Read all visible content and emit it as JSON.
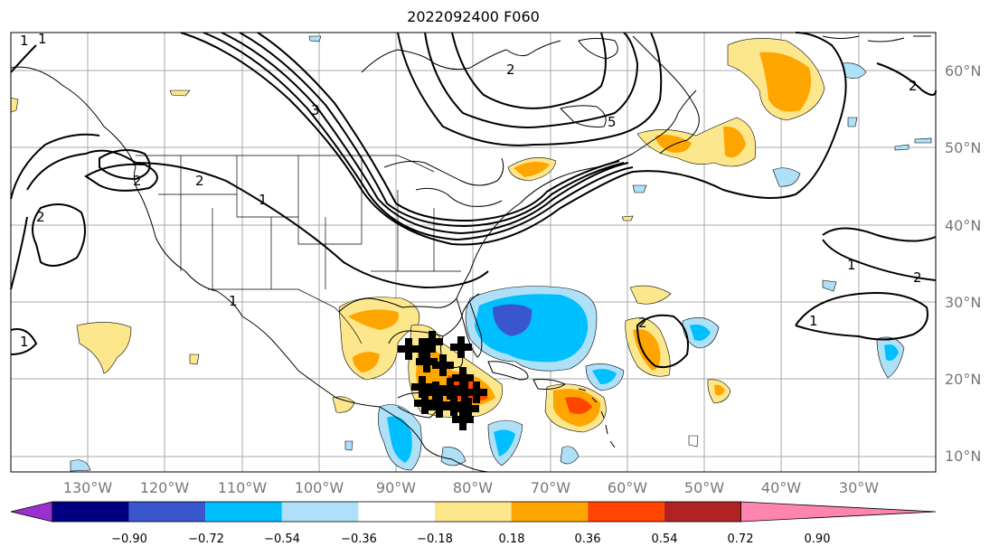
{
  "title": "2022092400 F060",
  "map": {
    "lon_range": [
      -135,
      -25
    ],
    "lat_range": [
      8,
      65
    ],
    "lat_labels": [
      "10°N",
      "20°N",
      "30°N",
      "40°N",
      "50°N",
      "60°N"
    ],
    "lon_labels": [
      "130°W",
      "120°W",
      "110°W",
      "100°W",
      "90°W",
      "80°W",
      "70°W",
      "60°W",
      "50°W",
      "40°W",
      "30°W"
    ],
    "contour_labels": [
      "1",
      "1",
      "1",
      "1",
      "2",
      "2",
      "2",
      "2",
      "3",
      "5",
      "2",
      "1",
      "2",
      "1",
      "1",
      "2"
    ],
    "colors": {
      "land": "#ffffff",
      "coast": "#000000",
      "grid": "#aaaaaa",
      "contour": "#000000"
    }
  },
  "colorbar": {
    "ticks": [
      "−0.90",
      "−0.72",
      "−0.54",
      "−0.36",
      "−0.18",
      "0.18",
      "0.36",
      "0.54",
      "0.72",
      "0.90"
    ],
    "colors": [
      "#9b30d0",
      "#000080",
      "#3a56cc",
      "#00bfff",
      "#aee0f8",
      "#ffffff",
      "#fde78c",
      "#ffa500",
      "#ff4500",
      "#b22222",
      "#ff85b0"
    ]
  }
}
